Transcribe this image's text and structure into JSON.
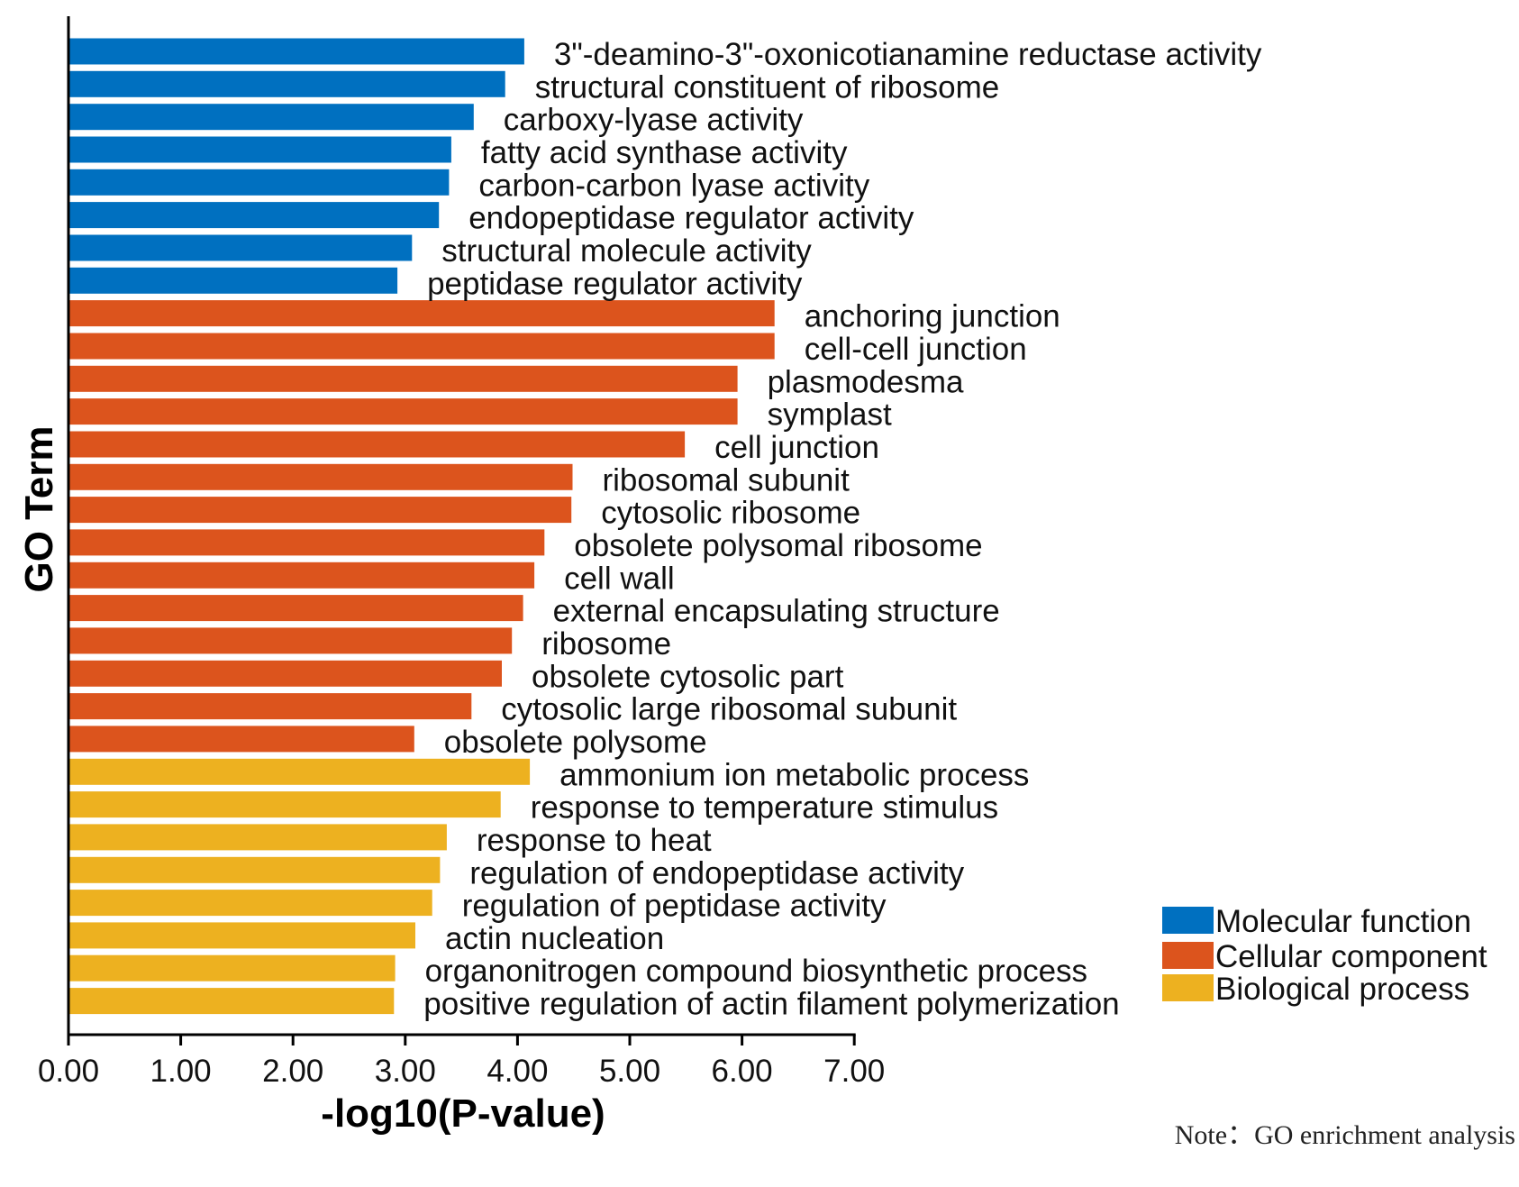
{
  "chart_data": {
    "type": "bar",
    "orientation": "horizontal",
    "xlabel": "-log10(P-value)",
    "ylabel": "GO Term",
    "xlim": [
      0,
      7
    ],
    "xticks": [
      "0.00",
      "1.00",
      "2.00",
      "3.00",
      "4.00",
      "5.00",
      "6.00",
      "7.00"
    ],
    "grid": false,
    "legend_position": "bottom-right",
    "note": "Note：GO enrichment analysis",
    "series": [
      {
        "name": "Molecular function",
        "color": "#0070C0",
        "categories": [
          "3\"-deamino-3\"-oxonicotianamine reductase activity",
          "structural constituent of ribosome",
          "carboxy-lyase activity",
          "fatty acid synthase activity",
          "carbon-carbon lyase activity",
          "endopeptidase regulator activity",
          "structural molecule activity",
          "peptidase regulator activity"
        ],
        "values": [
          4.06,
          3.89,
          3.61,
          3.41,
          3.39,
          3.3,
          3.06,
          2.93
        ]
      },
      {
        "name": "Cellular component",
        "color": "#DC541D",
        "categories": [
          "anchoring junction",
          "cell-cell junction",
          "plasmodesma",
          "symplast",
          "cell junction",
          "ribosomal subunit",
          "cytosolic ribosome",
          "obsolete polysomal ribosome",
          "cell wall",
          "external encapsulating structure",
          "ribosome",
          "obsolete cytosolic part",
          "cytosolic large ribosomal subunit",
          "obsolete polysome"
        ],
        "values": [
          6.29,
          6.29,
          5.96,
          5.96,
          5.49,
          4.49,
          4.48,
          4.24,
          4.15,
          4.05,
          3.95,
          3.86,
          3.59,
          3.08
        ]
      },
      {
        "name": "Biological process",
        "color": "#EDB120",
        "categories": [
          "ammonium ion metabolic process",
          "response to temperature stimulus",
          "response to heat",
          "regulation of endopeptidase activity",
          "regulation of peptidase activity",
          "actin nucleation",
          "organonitrogen compound biosynthetic process",
          "positive regulation of actin filament polymerization"
        ],
        "values": [
          4.11,
          3.85,
          3.37,
          3.31,
          3.24,
          3.09,
          2.91,
          2.9
        ]
      }
    ]
  }
}
